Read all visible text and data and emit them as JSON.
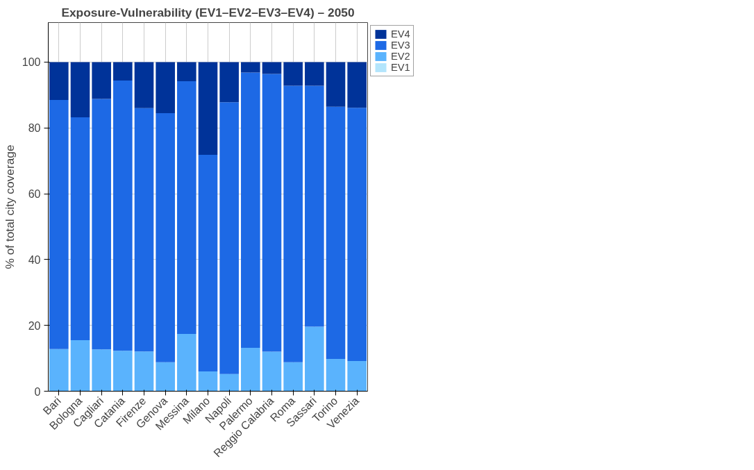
{
  "chart_data": {
    "type": "bar",
    "stacked": true,
    "title": "Exposure-Vulnerability (EV1–EV2–EV3–EV4) – 2050",
    "ylabel": "% of total city coverage",
    "categories": [
      "Bari",
      "Bologna",
      "Cagliari",
      "Catania",
      "Firenze",
      "Genova",
      "Messina",
      "Milano",
      "Napoli",
      "Palermo",
      "Reggio Calabria",
      "Roma",
      "Sassari",
      "Torino",
      "Venezia"
    ],
    "series": [
      {
        "name": "EV1",
        "color": "#b3e5fc",
        "values": [
          0,
          0,
          0,
          0,
          0,
          0,
          0,
          0,
          0,
          0,
          0,
          0,
          0,
          0,
          0
        ]
      },
      {
        "name": "EV2",
        "color": "#5ab3fd",
        "values": [
          12.8,
          15.5,
          12.7,
          12.3,
          12.1,
          8.8,
          17.4,
          6.0,
          5.2,
          13.2,
          12.0,
          8.8,
          19.6,
          9.8,
          9.2
        ]
      },
      {
        "name": "EV3",
        "color": "#1d69e5",
        "values": [
          75.7,
          67.7,
          76.1,
          82.1,
          73.9,
          75.7,
          76.8,
          65.8,
          82.6,
          83.6,
          84.4,
          84.0,
          73.2,
          76.6,
          76.9
        ]
      },
      {
        "name": "EV4",
        "color": "#003399",
        "values": [
          11.5,
          16.8,
          11.2,
          5.6,
          14.0,
          15.5,
          5.8,
          28.2,
          12.2,
          3.2,
          3.6,
          7.2,
          7.2,
          13.6,
          13.9
        ]
      }
    ],
    "ylim": [
      0,
      112
    ],
    "yticks": [
      0,
      20,
      40,
      60,
      80,
      100
    ],
    "grid": true,
    "legend": "top right"
  }
}
